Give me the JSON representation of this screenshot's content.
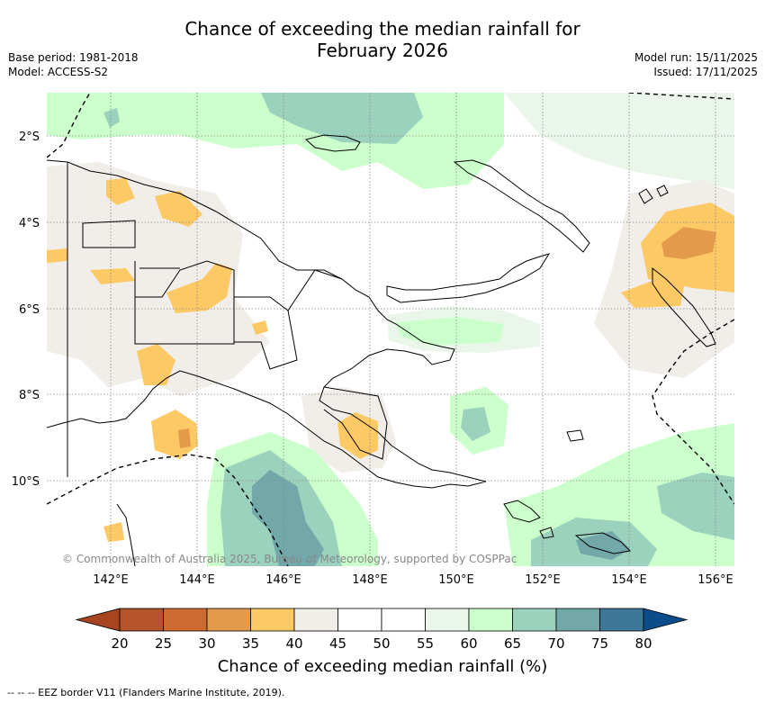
{
  "title": {
    "line1": "Chance of exceeding the median rainfall for",
    "line2": "February 2026"
  },
  "meta": {
    "base_period": "Base period: 1981-2018",
    "model": "Model: ACCESS-S2",
    "model_run": "Model run: 15/11/2025",
    "issued": "Issued: 17/11/2025"
  },
  "map": {
    "lon_ticks": [
      "142°E",
      "144°E",
      "146°E",
      "148°E",
      "150°E",
      "152°E",
      "154°E",
      "156°E"
    ],
    "lat_ticks": [
      "2°S",
      "4°S",
      "6°S",
      "8°S",
      "10°S"
    ],
    "copyright": "© Commonwealth of Australia 2025, Bureau of Meteorology, supported by COSPPac"
  },
  "colorbar": {
    "title": "Chance of exceeding median rainfall (%)",
    "labels": [
      "20",
      "25",
      "30",
      "35",
      "40",
      "45",
      "50",
      "55",
      "60",
      "65",
      "70",
      "75",
      "80"
    ],
    "colors": [
      "#b5532a",
      "#cd6a32",
      "#e39a4a",
      "#fdc964",
      "#f1ede8",
      "#ffffff",
      "#ffffff",
      "#eaf6ea",
      "#cbffcb",
      "#9bd2bd",
      "#72a8a9",
      "#3e7797"
    ],
    "low_color": "#a6451f",
    "high_color": "#0c4c8a"
  },
  "footnote": "--  --  -- EEZ border V11 (Flanders Marine Institute, 2019)."
}
